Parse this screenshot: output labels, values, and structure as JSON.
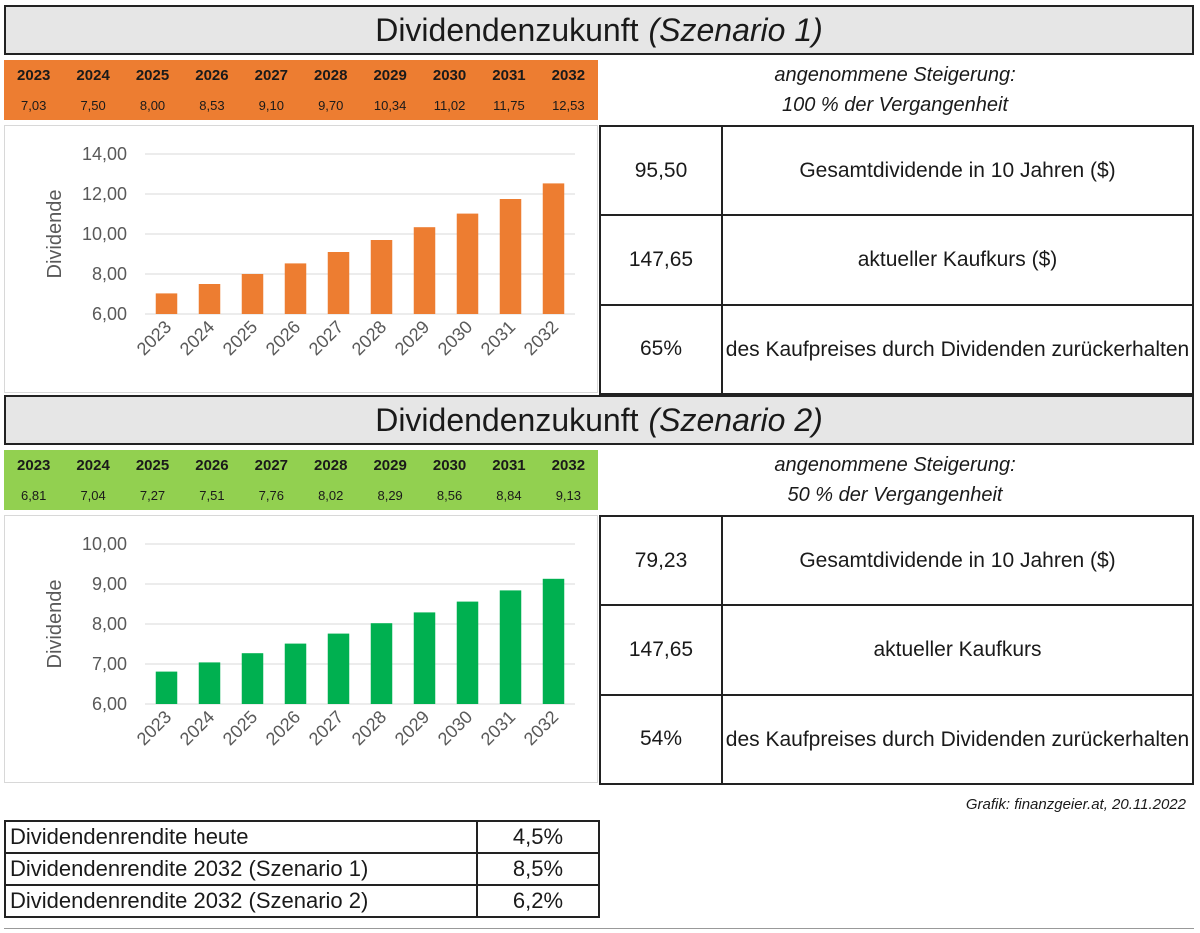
{
  "charts": [
    {
      "title_main": "Dividendenzukunft",
      "title_scenario": "(Szenario 1)",
      "strip_color": "#ED7D31",
      "bar_color": "#ED7D31",
      "note_line1": "angenommene Steigerung:",
      "note_line2": "100 % der Vergangenheit",
      "rows": [
        {
          "value": "95,50",
          "label": "Gesamtdividende in 10 Jahren ($)"
        },
        {
          "value": "147,65",
          "label": "aktueller Kaufkurs ($)"
        },
        {
          "value": "65%",
          "label": "des Kaufpreises durch Dividenden zurückerhalten"
        }
      ]
    },
    {
      "title_main": "Dividendenzukunft",
      "title_scenario": "(Szenario 2)",
      "strip_color": "#92D050",
      "bar_color": "#00B050",
      "note_line1": "angenommene Steigerung:",
      "note_line2": "50 % der Vergangenheit",
      "rows": [
        {
          "value": "79,23",
          "label": "Gesamtdividende in 10 Jahren ($)"
        },
        {
          "value": "147,65",
          "label": "aktueller Kaufkurs"
        },
        {
          "value": "54%",
          "label": "des Kaufpreises durch Dividenden zurückerhalten"
        }
      ]
    }
  ],
  "chart_data": [
    {
      "type": "bar",
      "categories": [
        "2023",
        "2024",
        "2025",
        "2026",
        "2027",
        "2028",
        "2029",
        "2030",
        "2031",
        "2032"
      ],
      "value_labels": [
        "7,03",
        "7,50",
        "8,00",
        "8,53",
        "9,10",
        "9,70",
        "10,34",
        "11,02",
        "11,75",
        "12,53"
      ],
      "values": [
        7.03,
        7.5,
        8.0,
        8.53,
        9.1,
        9.7,
        10.34,
        11.02,
        11.75,
        12.53
      ],
      "ylabel": "Dividende",
      "ylim": [
        6,
        14
      ],
      "yticks": [
        6,
        8,
        10,
        12,
        14
      ],
      "ytick_labels": [
        "6,00",
        "8,00",
        "10,00",
        "12,00",
        "14,00"
      ],
      "grid": true
    },
    {
      "type": "bar",
      "categories": [
        "2023",
        "2024",
        "2025",
        "2026",
        "2027",
        "2028",
        "2029",
        "2030",
        "2031",
        "2032"
      ],
      "value_labels": [
        "6,81",
        "7,04",
        "7,27",
        "7,51",
        "7,76",
        "8,02",
        "8,29",
        "8,56",
        "8,84",
        "9,13"
      ],
      "values": [
        6.81,
        7.04,
        7.27,
        7.51,
        7.76,
        8.02,
        8.29,
        8.56,
        8.84,
        9.13
      ],
      "ylabel": "Dividende",
      "ylim": [
        6,
        10
      ],
      "yticks": [
        6,
        7,
        8,
        9,
        10
      ],
      "ytick_labels": [
        "6,00",
        "7,00",
        "8,00",
        "9,00",
        "10,00"
      ],
      "grid": true
    }
  ],
  "credit": "Grafik: finanzgeier.at, 20.11.2022",
  "yield_table": [
    {
      "label": "Dividendenrendite heute",
      "value": "4,5%"
    },
    {
      "label": "Dividendenrendite 2032 (Szenario 1)",
      "value": "8,5%"
    },
    {
      "label": "Dividendenrendite 2032 (Szenario 2)",
      "value": "6,2%"
    }
  ]
}
